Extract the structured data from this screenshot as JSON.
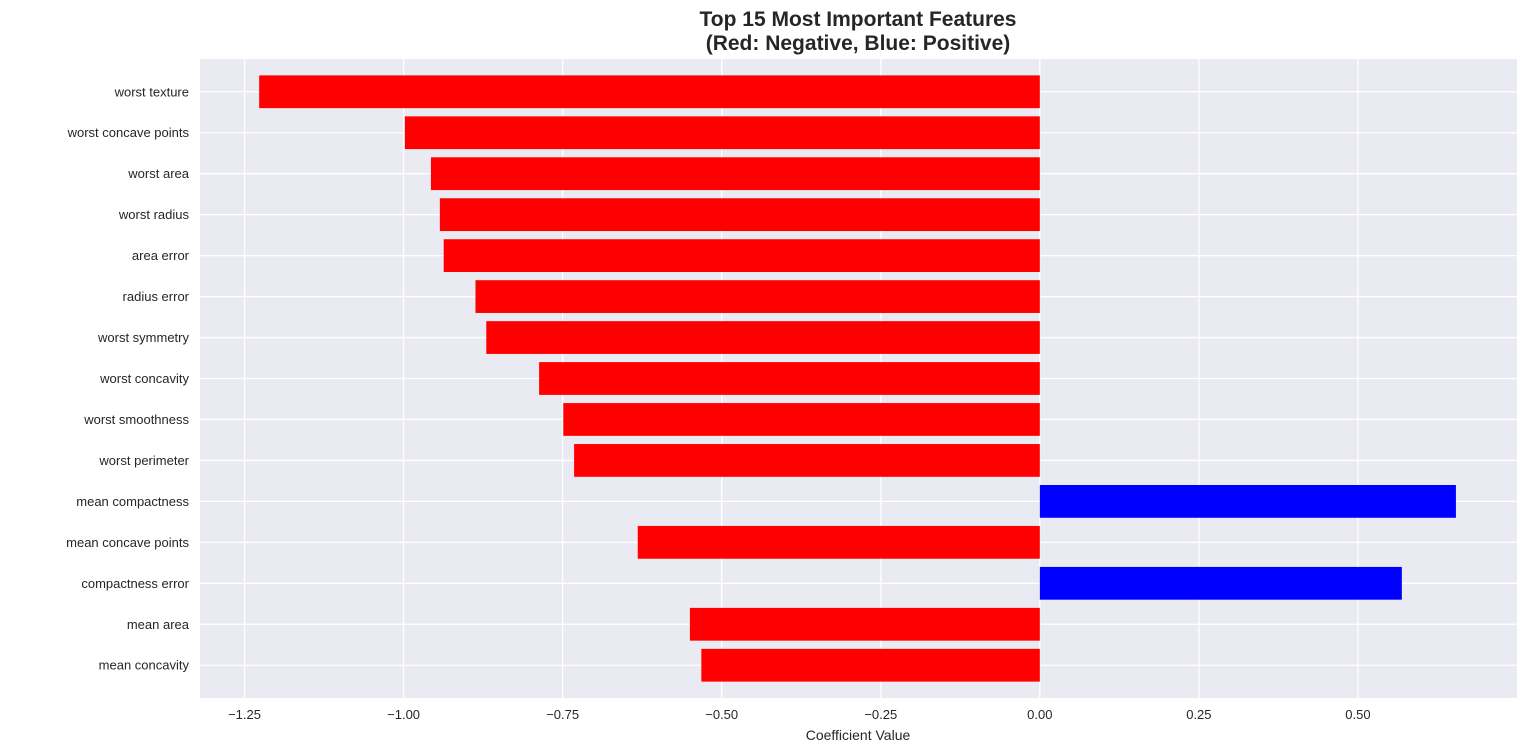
{
  "chart_data": {
    "type": "bar",
    "orientation": "horizontal",
    "title_line1": "Top 15 Most Important Features",
    "title_line2": "(Red: Negative, Blue: Positive)",
    "xlabel": "Coefficient Value",
    "ylabel": "",
    "xlim": [
      -1.32,
      0.75
    ],
    "xticks": [
      -1.25,
      -1.0,
      -0.75,
      -0.5,
      -0.25,
      0.0,
      0.25,
      0.5
    ],
    "xtick_labels": [
      "−1.25",
      "−1.00",
      "−0.75",
      "−0.50",
      "−0.25",
      "0.00",
      "0.25",
      "0.50"
    ],
    "grid": true,
    "categories": [
      "worst texture",
      "worst concave points",
      "worst area",
      "worst radius",
      "area error",
      "radius error",
      "worst symmetry",
      "worst concavity",
      "worst smoothness",
      "worst perimeter",
      "mean compactness",
      "mean concave points",
      "compactness error",
      "mean area",
      "mean concavity"
    ],
    "values": [
      -1.227,
      -0.998,
      -0.957,
      -0.943,
      -0.937,
      -0.887,
      -0.87,
      -0.787,
      -0.749,
      -0.732,
      0.654,
      -0.632,
      0.569,
      -0.55,
      -0.532
    ],
    "colors": {
      "negative": "#ff0000",
      "positive": "#0000ff",
      "plot_bg": "#eaeaf2",
      "grid": "#ffffff",
      "text": "#262626"
    }
  }
}
